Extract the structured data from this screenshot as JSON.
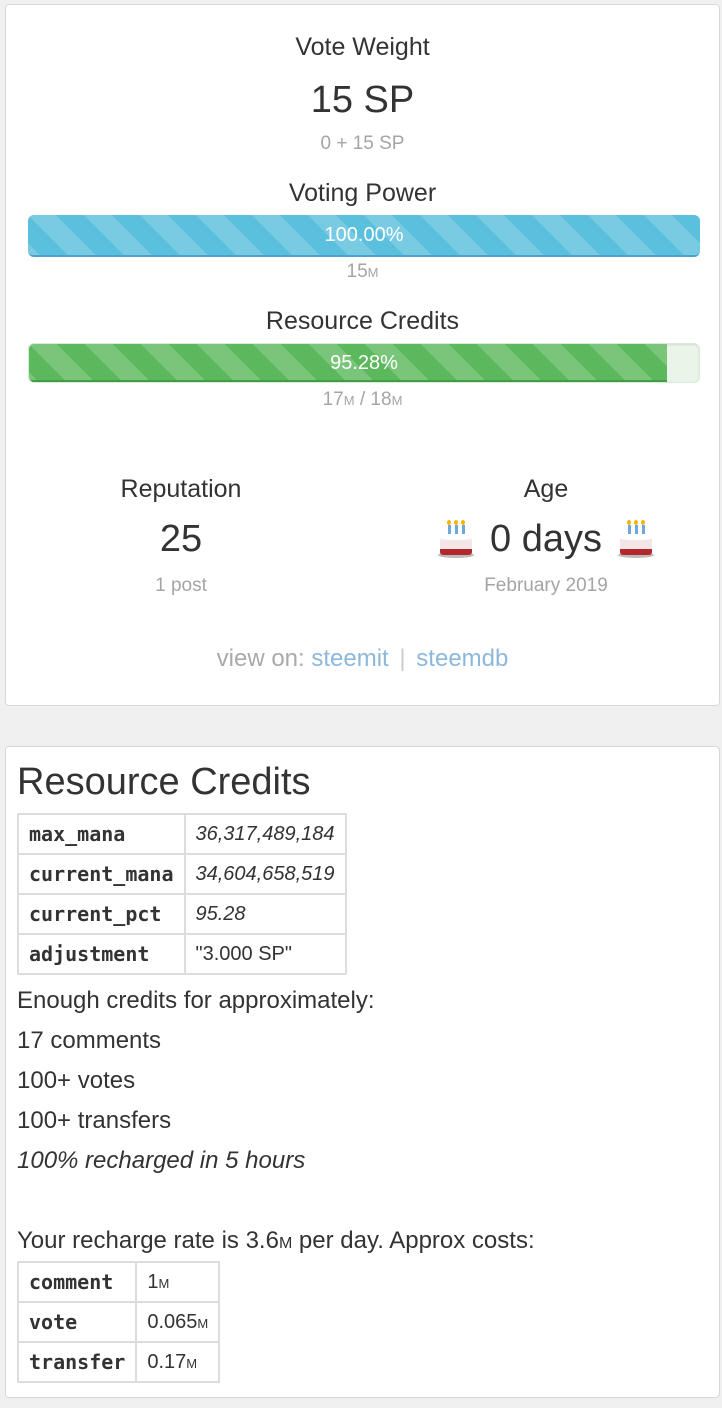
{
  "vote_weight": {
    "title": "Vote Weight",
    "value": "15 SP",
    "detail": "0 + 15 SP"
  },
  "voting_power": {
    "title": "Voting Power",
    "percent": 100.0,
    "label": "100.00%",
    "amount": "15",
    "amount_unit": "M"
  },
  "resource_credits_bar": {
    "title": "Resource Credits",
    "percent": 95.28,
    "label": "95.28%",
    "current": "17",
    "current_unit": "M",
    "separator": " / ",
    "max": "18",
    "max_unit": "M"
  },
  "reputation": {
    "title": "Reputation",
    "value": "25",
    "detail": "1 post"
  },
  "age": {
    "title": "Age",
    "value": "0 days",
    "detail": "February 2019",
    "icon": "birthday-cake-icon"
  },
  "view_on": {
    "prefix": "view on:",
    "link1": "steemit",
    "separator": "|",
    "link2": "steemdb"
  },
  "rc_panel": {
    "title": "Resource Credits",
    "mana": [
      {
        "key": "max_mana",
        "value": "36,317,489,184"
      },
      {
        "key": "current_mana",
        "value": "34,604,658,519"
      },
      {
        "key": "current_pct",
        "value": "95.28"
      },
      {
        "key": "adjustment",
        "value": "\"3.000 SP\""
      }
    ],
    "enough_text": "Enough credits for approximately:",
    "comments": "17 comments",
    "votes": "100+ votes",
    "transfers": "100+ transfers",
    "recharge_time": "100% recharged in 5 hours",
    "recharge_rate_prefix": "Your recharge rate is 3.6",
    "recharge_rate_unit": "M",
    "recharge_rate_suffix": " per day. Approx costs:",
    "costs": [
      {
        "key": "comment",
        "value": "1",
        "unit": "M"
      },
      {
        "key": "vote",
        "value": "0.065",
        "unit": "M"
      },
      {
        "key": "transfer",
        "value": "0.17",
        "unit": "M"
      }
    ]
  },
  "colors": {
    "voting_bar": "#5bc0de",
    "rc_bar": "#5cb85c",
    "link": "#8db8dc"
  }
}
